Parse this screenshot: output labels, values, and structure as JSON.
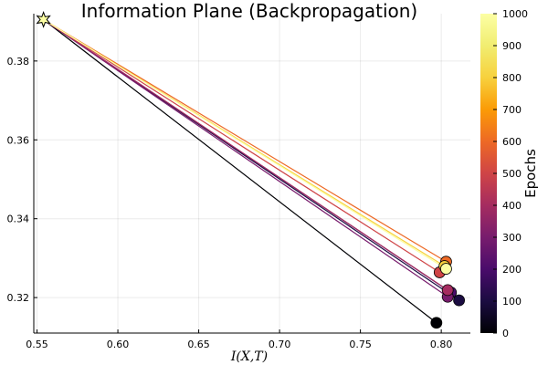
{
  "chart_data": {
    "type": "scatter",
    "title": "Information Plane (Backpropagation)",
    "xlabel": "I(X,T)",
    "ylabel": "",
    "xlim": [
      0.548,
      0.818
    ],
    "ylim": [
      0.311,
      0.392
    ],
    "x_ticks": [
      "0.55",
      "0.60",
      "0.65",
      "0.70",
      "0.75",
      "0.80"
    ],
    "x_tick_values": [
      0.55,
      0.6,
      0.65,
      0.7,
      0.75,
      0.8
    ],
    "y_ticks": [
      "0.32",
      "0.34",
      "0.36",
      "0.38"
    ],
    "y_tick_values": [
      0.32,
      0.34,
      0.36,
      0.38
    ],
    "grid": true,
    "legend": "none",
    "start_point": {
      "x": 0.554,
      "y": 0.3905,
      "marker": "star"
    },
    "colorbar": {
      "label": "Epochs",
      "min": 0,
      "max": 1000,
      "ticks": [
        "0",
        "100",
        "200",
        "300",
        "400",
        "500",
        "600",
        "700",
        "800",
        "900",
        "1000"
      ],
      "tick_values": [
        0,
        100,
        200,
        300,
        400,
        500,
        600,
        700,
        800,
        900,
        1000
      ],
      "colormap": "inferno"
    },
    "points": [
      {
        "epoch": 0,
        "x": 0.797,
        "y": 0.3136
      },
      {
        "epoch": 100,
        "x": 0.811,
        "y": 0.3193
      },
      {
        "epoch": 200,
        "x": 0.806,
        "y": 0.3213
      },
      {
        "epoch": 300,
        "x": 0.804,
        "y": 0.3202
      },
      {
        "epoch": 400,
        "x": 0.804,
        "y": 0.3219
      },
      {
        "epoch": 500,
        "x": 0.799,
        "y": 0.3264
      },
      {
        "epoch": 600,
        "x": 0.803,
        "y": 0.3291
      },
      {
        "epoch": 800,
        "x": 0.802,
        "y": 0.328
      },
      {
        "epoch": 1000,
        "x": 0.803,
        "y": 0.3273
      }
    ]
  }
}
